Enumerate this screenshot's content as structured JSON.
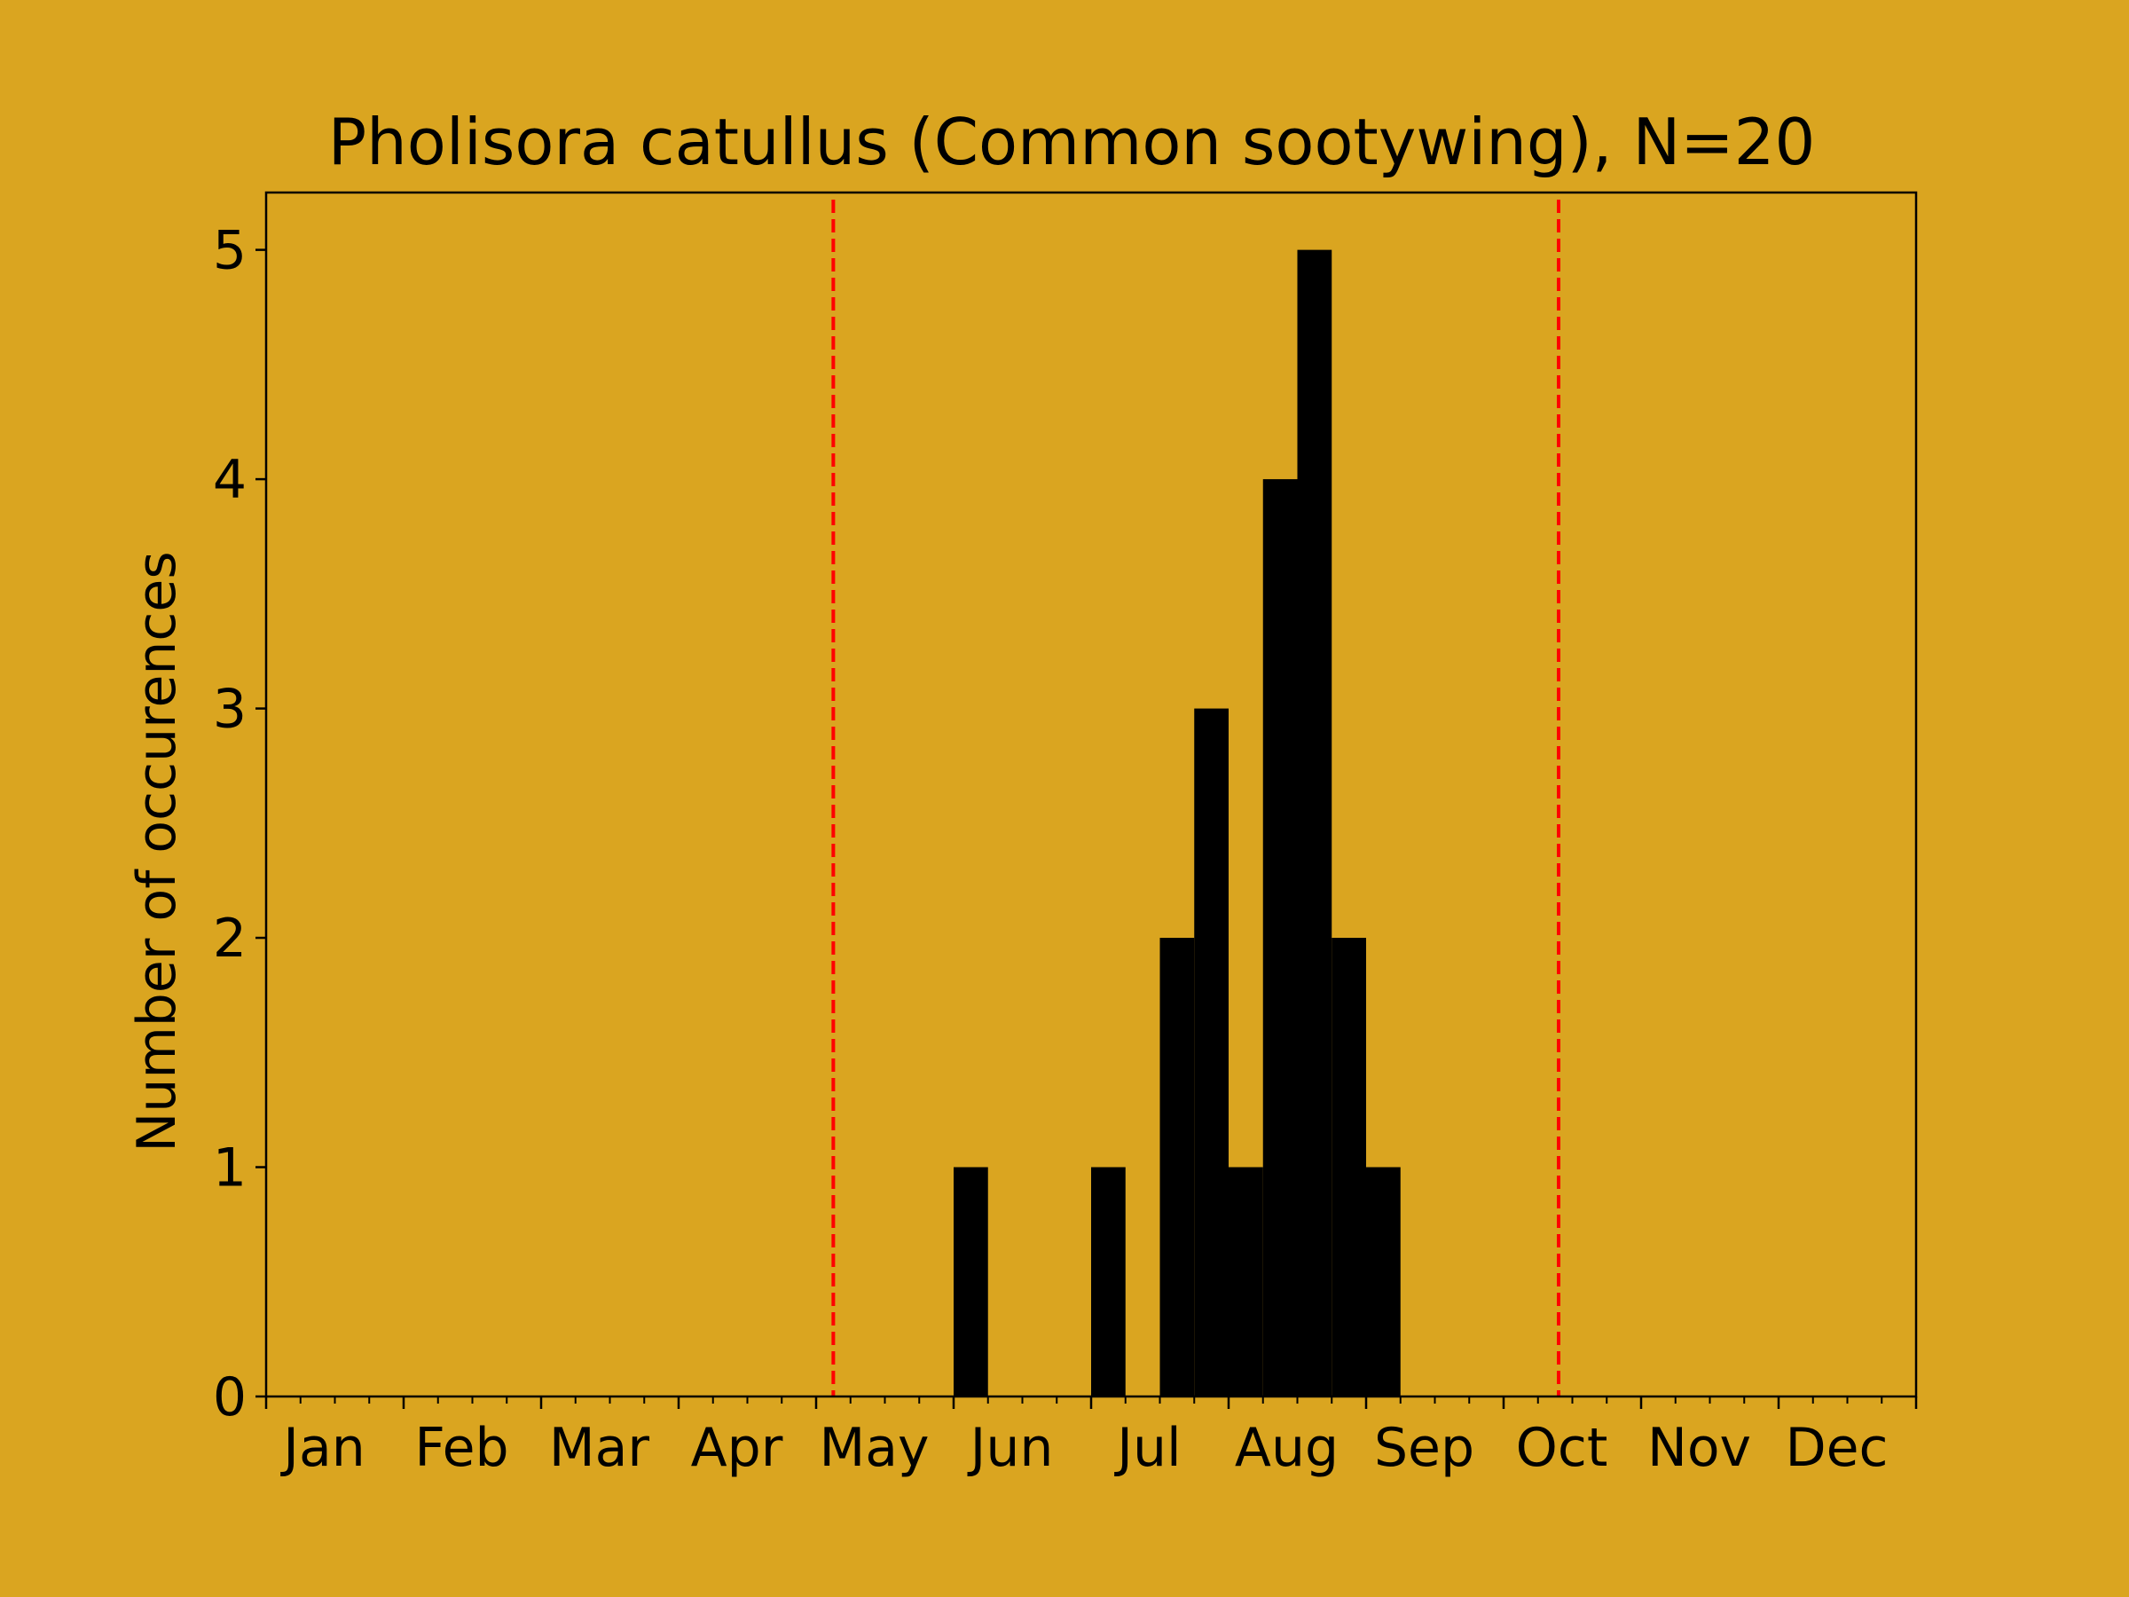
{
  "background": "#DAA520",
  "bar_color": "#000000",
  "marker_line_color": "#FF0000",
  "chart_data": {
    "type": "bar",
    "title": "Pholisora catullus (Common sootywing), N=20",
    "xlabel": "",
    "ylabel": "Number of occurences",
    "ylim": [
      0,
      5.25
    ],
    "yticks": [
      0,
      1,
      2,
      3,
      4,
      5
    ],
    "month_labels": [
      "Jan",
      "Feb",
      "Mar",
      "Apr",
      "May",
      "Jun",
      "Jul",
      "Aug",
      "Sep",
      "Oct",
      "Nov",
      "Dec"
    ],
    "bin_count": 48,
    "bins": [
      {
        "bin": 20,
        "label": "Jun (early)",
        "value": 1
      },
      {
        "bin": 24,
        "label": "Jul (early)",
        "value": 1
      },
      {
        "bin": 26,
        "label": "Jul (mid)",
        "value": 2
      },
      {
        "bin": 27,
        "label": "Jul (late)",
        "value": 3
      },
      {
        "bin": 28,
        "label": "Aug (early)",
        "value": 1
      },
      {
        "bin": 29,
        "label": "Aug (early-mid)",
        "value": 4
      },
      {
        "bin": 30,
        "label": "Aug (mid)",
        "value": 5
      },
      {
        "bin": 31,
        "label": "Aug (late)",
        "value": 2
      },
      {
        "bin": 32,
        "label": "Sep (early)",
        "value": 1
      }
    ],
    "reference_lines": [
      {
        "bin": 16.5,
        "style": "dashed",
        "color": "#FF0000"
      },
      {
        "bin": 37.6,
        "style": "dashed",
        "color": "#FF0000"
      }
    ],
    "grid": false,
    "legend": "none"
  }
}
